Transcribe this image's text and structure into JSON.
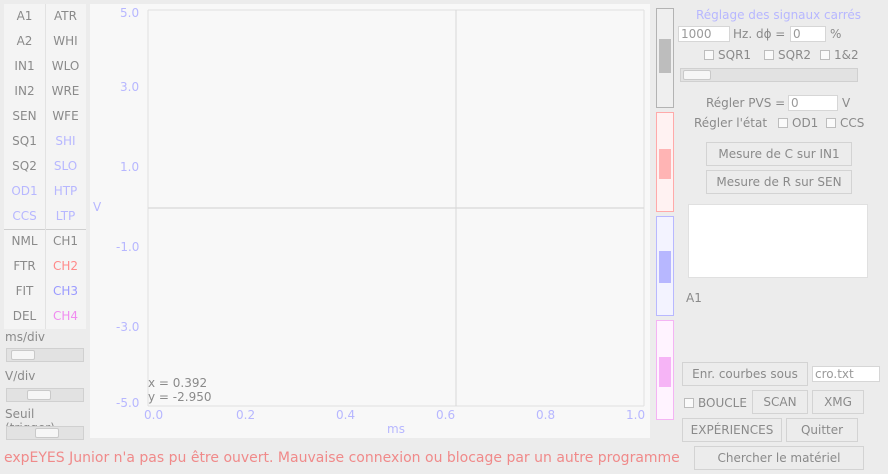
{
  "left_panel": {
    "buttons": [
      {
        "left": "A1",
        "right": "ATR"
      },
      {
        "left": "A2",
        "right": "WHI"
      },
      {
        "left": "IN1",
        "right": "WLO"
      },
      {
        "left": "IN2",
        "right": "WRE"
      },
      {
        "left": "SEN",
        "right": "WFE"
      },
      {
        "left": "SQ1",
        "right": "SHI"
      },
      {
        "left": "SQ2",
        "right": "SLO"
      },
      {
        "left": "OD1",
        "right": "HTP"
      },
      {
        "left": "CCS",
        "right": "LTP"
      },
      {
        "left": "NML",
        "right": "CH1"
      },
      {
        "left": "FTR",
        "right": "CH2"
      },
      {
        "left": "FIT",
        "right": "CH3"
      },
      {
        "left": "DEL",
        "right": "CH4"
      }
    ],
    "ms_div_label": "ms/div",
    "v_div_label": "V/div",
    "trigger_label": "Seuil (trigger)"
  },
  "plot": {
    "y_ticks": [
      "5.0",
      "3.0",
      "1.0",
      "-1.0",
      "-3.0",
      "-5.0"
    ],
    "x_ticks": [
      "0.0",
      "0.2",
      "0.4",
      "0.6",
      "0.8",
      "1.0"
    ],
    "y_axis_label": "V",
    "x_axis_label": "ms",
    "cursor_x": "x = 0.392",
    "cursor_y": "y = -2.950"
  },
  "colors": {
    "ch1": "#8a8a8a",
    "ch2": "#ff8a8a",
    "ch3": "#9a9aff",
    "ch4": "#f08cf0",
    "accent": "#b7b7ff",
    "status": "#f08a8a"
  },
  "right_panel": {
    "title": "Réglage des signaux carrés",
    "freq_value": "1000",
    "freq_unit": "Hz. dϕ =",
    "phase_value": "0",
    "phase_unit": "%",
    "chk_sqr1": "SQR1",
    "chk_sqr2": "SQR2",
    "chk_12": "1&2",
    "pvs_label": "Régler PVS =",
    "pvs_value": "0",
    "pvs_unit": "V",
    "state_label": "Régler l'état",
    "chk_od1": "OD1",
    "chk_ccs": "CCS",
    "btn_measure_c": "Mesure de C sur IN1",
    "btn_measure_r": "Mesure de R sur SEN",
    "a1_label": "A1",
    "btn_save": "Enr. courbes sous",
    "save_filename": "cro.txt",
    "chk_loop": "BOUCLE",
    "btn_scan": "SCAN",
    "btn_xmg": "XMG",
    "btn_experiences": "EXPÉRIENCES",
    "btn_quit": "Quitter",
    "btn_search_hw": "Chercher le matériel"
  },
  "status_message": "expEYES Junior n'a pas pu être ouvert. Mauvaise connexion ou blocage par un autre programme"
}
